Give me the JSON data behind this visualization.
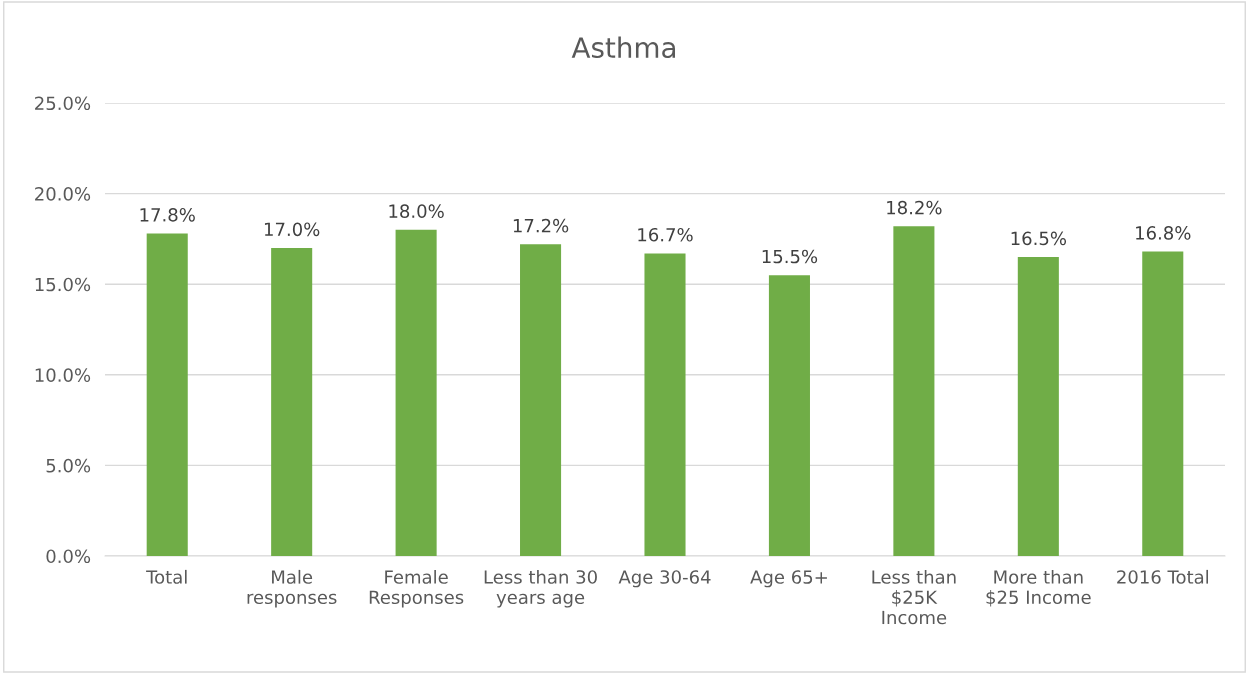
{
  "chart_data": {
    "type": "bar",
    "title": "Asthma",
    "categories": [
      "Total",
      "Male\nresponses",
      "Female\nResponses",
      "Less than 30\nyears age",
      "Age 30-64",
      "Age 65+",
      "Less than\n$25K\nIncome",
      "More than\n$25 Income",
      "2016 Total"
    ],
    "values": [
      17.8,
      17.0,
      18.0,
      17.2,
      16.7,
      15.5,
      18.2,
      16.5,
      16.8
    ],
    "value_labels": [
      "17.8%",
      "17.0%",
      "18.0%",
      "17.2%",
      "16.7%",
      "15.5%",
      "18.2%",
      "16.5%",
      "16.8%"
    ],
    "color": "#70ad47",
    "ylim": [
      0,
      25
    ],
    "yticks": [
      {
        "value": 0,
        "label": "0.0%"
      },
      {
        "value": 5,
        "label": "5.0%"
      },
      {
        "value": 10,
        "label": "10.0%"
      },
      {
        "value": 15,
        "label": "15.0%"
      },
      {
        "value": 20,
        "label": "20.0%"
      },
      {
        "value": 25,
        "label": "25.0%"
      }
    ],
    "grid": "y",
    "legend": false
  }
}
